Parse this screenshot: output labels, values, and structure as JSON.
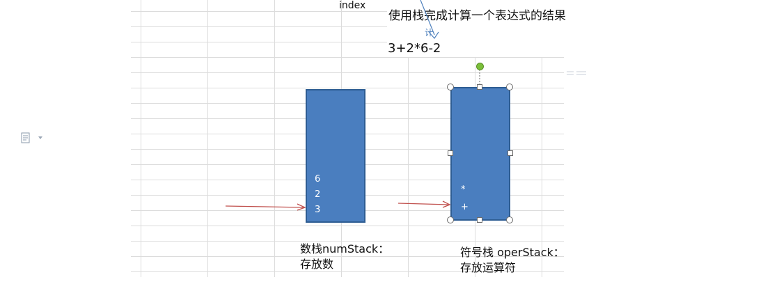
{
  "canvas": {
    "index_label": "index",
    "title": "使用栈完成计算一个表达式的结果",
    "expression": "3+2*6-2",
    "sketch_mark": "计"
  },
  "num_stack": {
    "items": [
      "6",
      "2",
      "3"
    ],
    "caption_line1": "数栈numStack：",
    "caption_line2": "存放数"
  },
  "oper_stack": {
    "items": [
      "*",
      "+"
    ],
    "caption_line1": "符号栈 operStack：",
    "caption_line2": "存放运算符"
  },
  "colors": {
    "stack_fill": "#4a7ebf",
    "stack_border": "#2e5d93",
    "arrow": "#c0504d",
    "pen": "#4f81bd"
  },
  "icons": {
    "paste_options": "document-icon",
    "dropdown": "chevron-down-icon"
  }
}
